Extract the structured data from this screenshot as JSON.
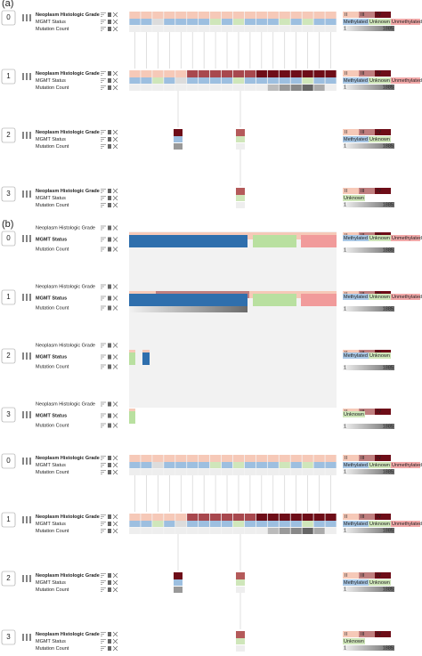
{
  "panels": [
    {
      "label": "(a)",
      "groups": [
        {
          "index": "0",
          "attributes": [
            "Neoplasm Histologic Grade",
            "MGMT Status",
            "Mutation Count"
          ],
          "grade_legend": [
            "II",
            "III",
            "IV"
          ],
          "mgmt_legend": [
            "Methylated",
            "Unknown",
            "Unmethylated"
          ],
          "count_legend": [
            "1",
            "1885"
          ]
        },
        {
          "index": "1",
          "attributes": [
            "Neoplasm Histologic Grade",
            "MGMT Status",
            "Mutation Count"
          ],
          "grade_legend": [
            "II",
            "III",
            "IV"
          ],
          "mgmt_legend": [
            "Methylated",
            "Unknown",
            "Unmethylated"
          ],
          "count_legend": [
            "1",
            "1885"
          ]
        },
        {
          "index": "2",
          "attributes": [
            "Neoplasm Histologic Grade",
            "MGMT Status",
            "Mutation Count"
          ],
          "grade_legend": [
            "II",
            "III",
            "IV"
          ],
          "mgmt_legend": [
            "Methylated",
            "Unknown"
          ],
          "count_legend": [
            "1",
            "1885"
          ]
        },
        {
          "index": "3",
          "attributes": [
            "Neoplasm Histologic Grade",
            "MGMT Status",
            "Mutation Count"
          ],
          "grade_legend": [
            "II",
            "III",
            "IV"
          ],
          "mgmt_legend": [
            "Unknown"
          ],
          "count_legend": [
            "1",
            "1885"
          ]
        }
      ]
    },
    {
      "label": "(b)",
      "groups": [
        {
          "index": "0",
          "attributes": [
            "Neoplasm Histologic Grade",
            "MGMT Status",
            "Mutation Count"
          ],
          "grade_legend": [
            "II",
            "III",
            "IV"
          ],
          "mgmt_legend": [
            "Methylated",
            "Unknown",
            "Unmethylated"
          ],
          "count_legend": [
            "1",
            "1885"
          ]
        },
        {
          "index": "1",
          "attributes": [
            "Neoplasm Histologic Grade",
            "MGMT Status",
            "Mutation Count"
          ],
          "grade_legend": [
            "II",
            "III",
            "IV"
          ],
          "mgmt_legend": [
            "Methylated",
            "Unknown",
            "Unmethylated"
          ],
          "count_legend": [
            "1",
            "1885"
          ]
        },
        {
          "index": "2",
          "attributes": [
            "Neoplasm Histologic Grade",
            "MGMT Status",
            "Mutation Count"
          ],
          "grade_legend": [
            "II",
            "III",
            "IV"
          ],
          "mgmt_legend": [
            "Methylated",
            "Unknown"
          ],
          "count_legend": [
            "1",
            "1885"
          ]
        },
        {
          "index": "3",
          "attributes": [
            "Neoplasm Histologic Grade",
            "MGMT Status",
            "Mutation Count"
          ],
          "grade_legend": [
            "II",
            "III",
            "IV"
          ],
          "mgmt_legend": [
            "Unknown"
          ],
          "count_legend": [
            "1",
            "1885"
          ]
        }
      ]
    },
    {
      "groups": [
        {
          "index": "0",
          "attributes": [
            "Neoplasm Histologic Grade",
            "MGMT Status",
            "Mutation Count"
          ],
          "grade_legend": [
            "II",
            "III",
            "IV"
          ],
          "mgmt_legend": [
            "Methylated",
            "Unknown",
            "Unmethylated"
          ],
          "count_legend": [
            "1",
            "1885"
          ]
        },
        {
          "index": "1",
          "attributes": [
            "Neoplasm Histologic Grade",
            "MGMT Status",
            "Mutation Count"
          ],
          "grade_legend": [
            "II",
            "III",
            "IV"
          ],
          "mgmt_legend": [
            "Methylated",
            "Unknown",
            "Unmethylated"
          ],
          "count_legend": [
            "1",
            "1885"
          ]
        },
        {
          "index": "2",
          "attributes": [
            "Neoplasm Histologic Grade",
            "MGMT Status",
            "Mutation Count"
          ],
          "grade_legend": [
            "II",
            "III",
            "IV"
          ],
          "mgmt_legend": [
            "Methylated",
            "Unknown"
          ],
          "count_legend": [
            "1",
            "1885"
          ]
        },
        {
          "index": "3",
          "attributes": [
            "Neoplasm Histologic Grade",
            "MGMT Status",
            "Mutation Count"
          ],
          "grade_legend": [
            "II",
            "III",
            "IV"
          ],
          "mgmt_legend": [
            "Unknown"
          ],
          "count_legend": [
            "1",
            "1885"
          ]
        }
      ]
    }
  ]
}
